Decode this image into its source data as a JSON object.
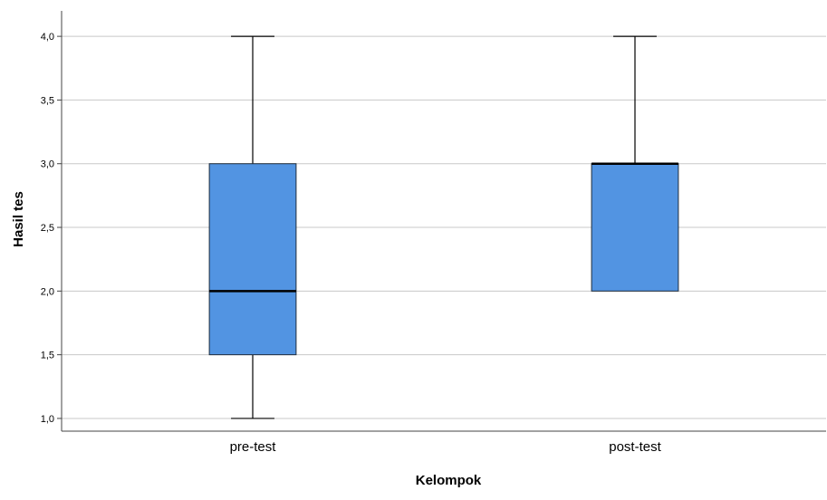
{
  "chart_data": {
    "type": "box",
    "xlabel": "Kelompok",
    "ylabel": "Hasil tes",
    "ylim": [
      0.9,
      4.2
    ],
    "yticks": [
      1.0,
      1.5,
      2.0,
      2.5,
      3.0,
      3.5,
      4.0
    ],
    "ytick_labels": [
      "1,0",
      "1,5",
      "2,0",
      "2,5",
      "3,0",
      "3,5",
      "4,0"
    ],
    "categories": [
      "pre-test",
      "post-test"
    ],
    "boxes": [
      {
        "category": "pre-test",
        "min": 1.0,
        "q1": 1.5,
        "median": 2.0,
        "q3": 3.0,
        "max": 4.0
      },
      {
        "category": "post-test",
        "min": 2.0,
        "q1": 2.0,
        "median": 3.0,
        "q3": 3.0,
        "max": 4.0
      }
    ],
    "grid": true,
    "colors": {
      "box_fill": "#5294e2",
      "box_stroke": "#1f2d3d",
      "grid": "#c8c8c8",
      "axis": "#444444"
    }
  }
}
